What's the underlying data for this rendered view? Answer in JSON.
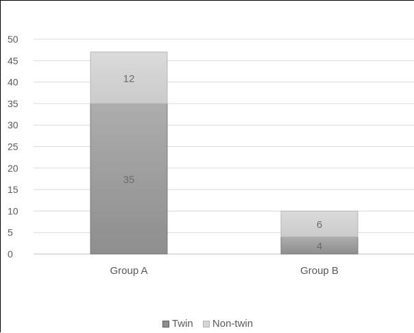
{
  "chart_data": {
    "type": "bar",
    "stacked": true,
    "categories": [
      "Group A",
      "Group B"
    ],
    "series": [
      {
        "name": "Twin",
        "values": [
          35,
          4
        ],
        "color": "#999999"
      },
      {
        "name": "Non-twin",
        "values": [
          12,
          6
        ],
        "color": "#d4d4d4"
      }
    ],
    "ylim": [
      0,
      50
    ],
    "yticks": [
      0,
      5,
      10,
      15,
      20,
      25,
      30,
      35,
      40,
      45,
      50
    ],
    "grid": true,
    "legend_position": "bottom"
  }
}
